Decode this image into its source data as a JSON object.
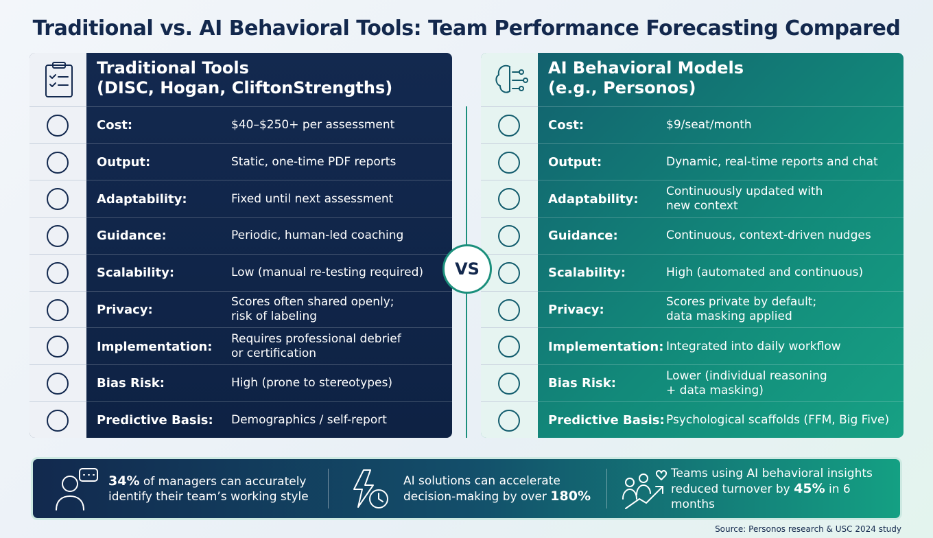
{
  "title": "Traditional vs. AI Behavioral Tools: Team Performance Forecasting Compared",
  "panels": [
    {
      "title": [
        "Traditional Tools",
        "(DISC, Hogan, CliftonStrengths)"
      ],
      "rows": [
        {
          "label": "Cost:",
          "value": [
            "$40–$250+ per assessment"
          ]
        },
        {
          "label": "Output:",
          "value": [
            "Static, one-time PDF reports"
          ]
        },
        {
          "label": "Adaptability:",
          "value": [
            "Fixed until next assessment"
          ]
        },
        {
          "label": "Guidance:",
          "value": [
            "Periodic, human-led coaching"
          ]
        },
        {
          "label": "Scalability:",
          "value": [
            "Low (manual re-testing required)"
          ]
        },
        {
          "label": "Privacy:",
          "value": [
            "Scores often shared openly;",
            "risk of labeling"
          ]
        },
        {
          "label": "Implementation:",
          "value": [
            "Requires professional debrief",
            "or certification"
          ]
        },
        {
          "label": "Bias Risk:",
          "value": [
            "High (prone to stereotypes)"
          ]
        },
        {
          "label": "Predictive Basis:",
          "value": [
            "Demographics / self-report"
          ]
        }
      ]
    },
    {
      "title": [
        "AI Behavioral Models",
        "(e.g., Personos)"
      ],
      "rows": [
        {
          "label": "Cost:",
          "value": [
            "$9/seat/month"
          ]
        },
        {
          "label": "Output:",
          "value": [
            "Dynamic, real-time reports and chat"
          ]
        },
        {
          "label": "Adaptability:",
          "value": [
            "Continuously updated with",
            "new context"
          ]
        },
        {
          "label": "Guidance:",
          "value": [
            "Continuous, context-driven nudges"
          ]
        },
        {
          "label": "Scalability:",
          "value": [
            "High (automated and continuous)"
          ]
        },
        {
          "label": "Privacy:",
          "value": [
            "Scores private by default;",
            "data masking applied"
          ]
        },
        {
          "label": "Implementation:",
          "value": [
            "Integrated into daily workflow"
          ]
        },
        {
          "label": "Bias Risk:",
          "value": [
            "Lower (individual reasoning",
            "+ data masking)"
          ]
        },
        {
          "label": "Predictive Basis:",
          "value": [
            "Psychological scaffolds (FFM, Big Five)"
          ]
        }
      ]
    }
  ],
  "vs": "VS",
  "stats": [
    [
      {
        "text": "34%",
        "bold": true
      },
      {
        "text": " of managers can accurately identify their team’s working style",
        "bold": false
      }
    ],
    [
      {
        "text": "AI solutions can accelerate decision-making by over ",
        "bold": false
      },
      {
        "text": "180%",
        "bold": true
      }
    ],
    [
      {
        "text": "Teams using AI behavioral insights reduced turnover by ",
        "bold": false
      },
      {
        "text": "45%",
        "bold": true
      },
      {
        "text": " in 6 months",
        "bold": false
      }
    ]
  ],
  "source": "Source: Personos research & USC 2024 study"
}
